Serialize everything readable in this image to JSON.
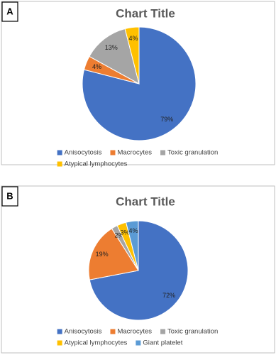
{
  "chart_data": [
    {
      "type": "pie",
      "panel": "A",
      "title": "Chart Title",
      "categories": [
        "Anisocytosis",
        "Macrocytes",
        "Toxic granulation",
        "Atypical lymphocytes"
      ],
      "values": [
        79,
        4,
        13,
        4
      ],
      "value_labels": [
        "79%",
        "4%",
        "13%",
        "4%"
      ],
      "colors": [
        "#4472c4",
        "#ed7d31",
        "#a5a5a5",
        "#ffc000"
      ],
      "legend": "bottom"
    },
    {
      "type": "pie",
      "panel": "B",
      "title": "Chart Title",
      "categories": [
        "Anisocytosis",
        "Macrocytes",
        "Toxic granulation",
        "Atypical lymphocytes",
        "Giant platelet"
      ],
      "values": [
        72,
        19,
        2,
        3,
        4
      ],
      "value_labels": [
        "72%",
        "19%",
        "2%",
        "3%",
        "4%"
      ],
      "colors": [
        "#4472c4",
        "#ed7d31",
        "#a5a5a5",
        "#ffc000",
        "#5b9bd5"
      ],
      "legend": "bottom"
    }
  ]
}
